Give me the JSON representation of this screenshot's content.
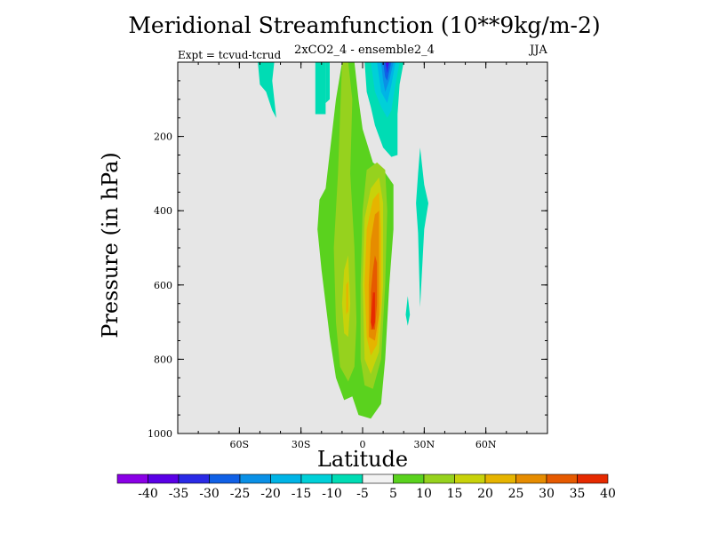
{
  "chart_data": {
    "type": "contour",
    "title": "Meridional Streamfunction (10**9kg/m-2)",
    "subtitle": "2xCO2_4 - ensemble2_4",
    "experiment_label": "Expt = tcvud-tcrud",
    "season": "JJA",
    "xlabel": "Latitude",
    "ylabel": "Pressure (in hPa)",
    "xlim": [
      -90,
      90
    ],
    "ylim": [
      1000,
      0
    ],
    "y_reversed": true,
    "x_ticks": [
      {
        "value": -60,
        "label": "60S"
      },
      {
        "value": -30,
        "label": "30S"
      },
      {
        "value": 0,
        "label": "0"
      },
      {
        "value": 30,
        "label": "30N"
      },
      {
        "value": 60,
        "label": "60N"
      }
    ],
    "y_ticks": [
      {
        "value": 200,
        "label": "200"
      },
      {
        "value": 400,
        "label": "400"
      },
      {
        "value": 600,
        "label": "600"
      },
      {
        "value": 800,
        "label": "800"
      },
      {
        "value": 1000,
        "label": "1000"
      }
    ],
    "background_color": "#e6e6e6",
    "colorbar": {
      "labels": [
        "-40",
        "-35",
        "-30",
        "-25",
        "-20",
        "-15",
        "-10",
        "-5",
        "5",
        "10",
        "15",
        "20",
        "25",
        "30",
        "35",
        "40"
      ],
      "colors": [
        "#8a00e6",
        "#5a00e6",
        "#2a2ae6",
        "#1060e6",
        "#0a90e6",
        "#00b4e6",
        "#00d0d8",
        "#00dcb4",
        "#f2f2f2",
        "#5ad21e",
        "#96d21e",
        "#c8d20a",
        "#e6b400",
        "#e68c00",
        "#e65a00",
        "#e62a00"
      ]
    },
    "regions": [
      {
        "level": "5",
        "color": "#5ad21e",
        "points": [
          [
            -10,
            0
          ],
          [
            -7,
            0
          ],
          [
            -4,
            0
          ],
          [
            -2,
            100
          ],
          [
            0,
            180
          ],
          [
            5,
            270
          ],
          [
            10,
            290
          ],
          [
            15,
            330
          ],
          [
            15,
            450
          ],
          [
            13,
            600
          ],
          [
            11,
            800
          ],
          [
            9,
            920
          ],
          [
            4,
            960
          ],
          [
            -2,
            950
          ],
          [
            -5,
            900
          ],
          [
            -9,
            910
          ],
          [
            -13,
            850
          ],
          [
            -16,
            740
          ],
          [
            -20,
            560
          ],
          [
            -22,
            450
          ],
          [
            -21,
            370
          ],
          [
            -18,
            340
          ],
          [
            -13,
            100
          ]
        ]
      },
      {
        "level": "10",
        "color": "#96d21e",
        "points": [
          [
            -10,
            0
          ],
          [
            -7,
            0
          ],
          [
            -5,
            100
          ],
          [
            -6,
            300
          ],
          [
            -4,
            500
          ],
          [
            -3,
            700
          ],
          [
            -4,
            820
          ],
          [
            -7,
            860
          ],
          [
            -11,
            820
          ],
          [
            -13,
            700
          ],
          [
            -14,
            500
          ],
          [
            -12,
            300
          ]
        ]
      },
      {
        "level": "10",
        "color": "#96d21e",
        "points": [
          [
            2,
            290
          ],
          [
            7,
            270
          ],
          [
            11,
            290
          ],
          [
            12,
            400
          ],
          [
            11,
            600
          ],
          [
            9,
            800
          ],
          [
            5,
            880
          ],
          [
            1,
            870
          ],
          [
            -1,
            800
          ],
          [
            -1,
            600
          ],
          [
            0,
            400
          ]
        ]
      },
      {
        "level": "15",
        "color": "#c8d20a",
        "points": [
          [
            4,
            340
          ],
          [
            8,
            310
          ],
          [
            10,
            380
          ],
          [
            10,
            600
          ],
          [
            8,
            780
          ],
          [
            4,
            840
          ],
          [
            1,
            800
          ],
          [
            0,
            600
          ],
          [
            1,
            420
          ]
        ]
      },
      {
        "level": "15",
        "color": "#c8d20a",
        "points": [
          [
            -9,
            560
          ],
          [
            -7,
            520
          ],
          [
            -6,
            650
          ],
          [
            -7,
            740
          ],
          [
            -9,
            730
          ],
          [
            -10,
            650
          ]
        ]
      },
      {
        "level": "20",
        "color": "#e6b400",
        "points": [
          [
            5,
            370
          ],
          [
            8,
            350
          ],
          [
            9,
            450
          ],
          [
            9,
            650
          ],
          [
            7,
            760
          ],
          [
            4,
            790
          ],
          [
            2,
            740
          ],
          [
            1,
            600
          ],
          [
            2,
            450
          ]
        ]
      },
      {
        "level": "25",
        "color": "#e68c00",
        "points": [
          [
            6,
            410
          ],
          [
            8,
            400
          ],
          [
            8,
            550
          ],
          [
            8,
            680
          ],
          [
            6,
            750
          ],
          [
            3,
            740
          ],
          [
            3,
            600
          ],
          [
            4,
            480
          ]
        ]
      },
      {
        "level": "30",
        "color": "#e65a00",
        "points": [
          [
            6,
            520
          ],
          [
            7,
            540
          ],
          [
            7,
            650
          ],
          [
            6,
            720
          ],
          [
            4,
            720
          ],
          [
            4,
            620
          ],
          [
            5,
            560
          ]
        ]
      },
      {
        "level": "35",
        "color": "#e62a00",
        "points": [
          [
            5,
            620
          ],
          [
            6,
            620
          ],
          [
            6,
            700
          ],
          [
            5,
            720
          ],
          [
            4,
            700
          ]
        ]
      },
      {
        "level": "20",
        "color": "#e6b400",
        "points": [
          [
            -8,
            600
          ],
          [
            -7,
            590
          ],
          [
            -7,
            670
          ],
          [
            -8,
            680
          ]
        ]
      },
      {
        "level": "-5",
        "color": "#00dcb4",
        "points": [
          [
            -51,
            0
          ],
          [
            -43,
            0
          ],
          [
            -44,
            50
          ],
          [
            -42,
            150
          ],
          [
            -44,
            130
          ],
          [
            -47,
            80
          ],
          [
            -50,
            60
          ]
        ]
      },
      {
        "level": "-5",
        "color": "#00dcb4",
        "points": [
          [
            -23,
            0
          ],
          [
            -18,
            0
          ],
          [
            -18,
            140
          ],
          [
            -23,
            140
          ]
        ]
      },
      {
        "level": "-5",
        "color": "#00dcb4",
        "points": [
          [
            -18,
            0
          ],
          [
            -16,
            0
          ],
          [
            -16,
            100
          ],
          [
            -18,
            110
          ]
        ]
      },
      {
        "level": "-5",
        "color": "#00dcb4",
        "points": [
          [
            1,
            0
          ],
          [
            20,
            0
          ],
          [
            18,
            60
          ],
          [
            17,
            140
          ],
          [
            17,
            250
          ],
          [
            14,
            255
          ],
          [
            10,
            230
          ],
          [
            6,
            170
          ],
          [
            4,
            120
          ],
          [
            2,
            80
          ]
        ]
      },
      {
        "level": "-10",
        "color": "#00d0d8",
        "points": [
          [
            4,
            0
          ],
          [
            18,
            0
          ],
          [
            16,
            60
          ],
          [
            14,
            130
          ],
          [
            12,
            150
          ],
          [
            9,
            120
          ],
          [
            6,
            80
          ]
        ]
      },
      {
        "level": "-15",
        "color": "#00b4e6",
        "points": [
          [
            7,
            0
          ],
          [
            16,
            0
          ],
          [
            14,
            60
          ],
          [
            12,
            110
          ],
          [
            9,
            80
          ]
        ]
      },
      {
        "level": "-20",
        "color": "#0a90e6",
        "points": [
          [
            9,
            0
          ],
          [
            15,
            0
          ],
          [
            13,
            50
          ],
          [
            11,
            80
          ],
          [
            10,
            50
          ]
        ]
      },
      {
        "level": "-25",
        "color": "#1060e6",
        "points": [
          [
            10,
            0
          ],
          [
            14,
            0
          ],
          [
            12,
            50
          ],
          [
            11,
            40
          ]
        ]
      },
      {
        "level": "-30",
        "color": "#2a2ae6",
        "points": [
          [
            11,
            0
          ],
          [
            13,
            0
          ],
          [
            12,
            30
          ]
        ]
      },
      {
        "level": "-35",
        "color": "#5a00e6",
        "points": [
          [
            11.5,
            0
          ],
          [
            12.5,
            0
          ],
          [
            12,
            15
          ]
        ]
      },
      {
        "level": "-5",
        "color": "#00dcb4",
        "points": [
          [
            28,
            230
          ],
          [
            30,
            330
          ],
          [
            32,
            380
          ],
          [
            30,
            450
          ],
          [
            28,
            660
          ],
          [
            27,
            460
          ],
          [
            26,
            380
          ],
          [
            27,
            300
          ]
        ]
      },
      {
        "level": "-5",
        "color": "#00dcb4",
        "points": [
          [
            22,
            630
          ],
          [
            23,
            680
          ],
          [
            22,
            710
          ],
          [
            21,
            680
          ]
        ]
      }
    ]
  }
}
